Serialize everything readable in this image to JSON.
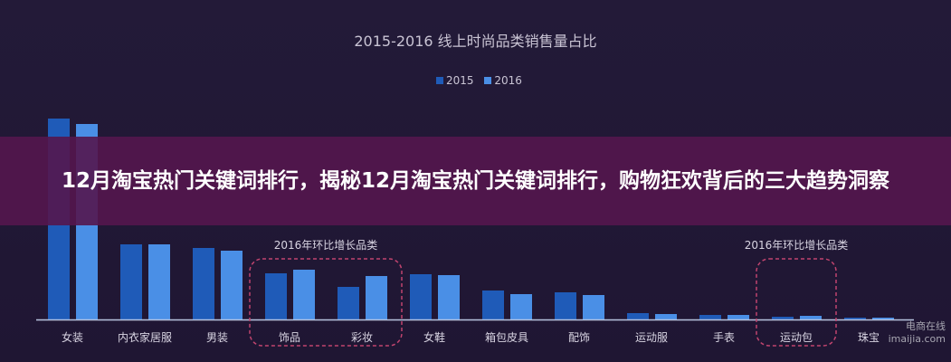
{
  "overlay_title": "12月淘宝热门关键词排行，揭秘12月淘宝热门关键词排行，购物狂欢背后的三大趋势洞察",
  "watermark": {
    "name": "电商在线",
    "url": "imaijia.com"
  },
  "chart_data": {
    "type": "bar",
    "title": "2015-2016 线上时尚品类销售量占比",
    "categories": [
      "女装",
      "内衣家居服",
      "男装",
      "饰品",
      "彩妆",
      "女鞋",
      "箱包皮具",
      "配饰",
      "运动服",
      "手表",
      "运动包",
      "珠宝"
    ],
    "series": [
      {
        "name": "2015",
        "color": "#1f5bb8",
        "values": [
          22.2,
          8.3,
          7.9,
          5.1,
          3.6,
          5.0,
          3.2,
          3.0,
          0.7,
          0.5,
          0.3,
          0.2
        ]
      },
      {
        "name": "2016",
        "color": "#4a8fe6",
        "values": [
          21.6,
          8.3,
          7.6,
          5.5,
          4.8,
          4.9,
          2.8,
          2.7,
          0.6,
          0.5,
          0.4,
          0.2
        ]
      }
    ],
    "legend": "top-center",
    "grid": false,
    "annotations": [
      {
        "label": "2016年环比增长品类",
        "categories": [
          "饰品",
          "彩妆"
        ]
      },
      {
        "label": "2016年环比增长品类",
        "categories": [
          "运动包"
        ]
      }
    ]
  }
}
